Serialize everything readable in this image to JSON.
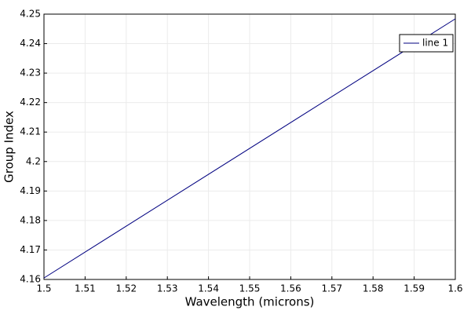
{
  "chart_data": {
    "type": "line",
    "xlabel": "Wavelength (microns)",
    "ylabel": "Group Index",
    "x": [
      1.5,
      1.6
    ],
    "series": [
      {
        "name": "line 1",
        "color": "#000080",
        "values": [
          4.1605,
          4.2484
        ]
      }
    ],
    "xlim": [
      1.5,
      1.6
    ],
    "xticks": [
      1.5,
      1.51,
      1.52,
      1.53,
      1.54,
      1.55,
      1.56,
      1.57,
      1.58,
      1.59,
      1.6
    ],
    "ylim": [
      4.16,
      4.25
    ],
    "yticks": [
      4.16,
      4.17,
      4.18,
      4.19,
      4.2,
      4.21,
      4.22,
      4.23,
      4.24,
      4.25
    ],
    "grid": true,
    "legend": "upper right"
  }
}
